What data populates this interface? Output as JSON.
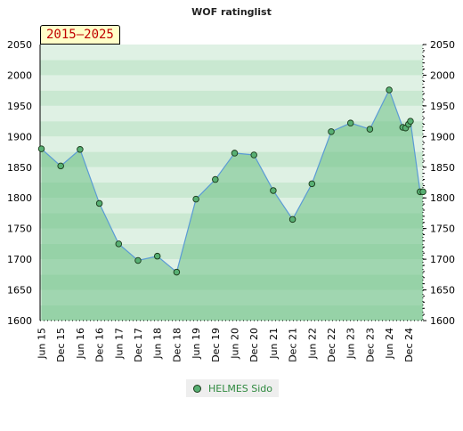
{
  "chart_data": {
    "type": "line",
    "title": "WOF ratinglist",
    "range_label": "2015–2025",
    "xlabel": "",
    "ylabel": "",
    "ylim": [
      1600,
      2050
    ],
    "y_ticks": [
      1600,
      1650,
      1700,
      1750,
      1800,
      1850,
      1900,
      1950,
      2000,
      2050
    ],
    "categories": [
      "Jun 15",
      "Dec 15",
      "Jun 16",
      "Dec 16",
      "Jun 17",
      "Dec 17",
      "Jun 18",
      "Dec 18",
      "Jun 19",
      "Dec 19",
      "Jun 20",
      "Dec 20",
      "Jun 21",
      "Dec 21",
      "Jun 22",
      "Dec 22",
      "Jun 23",
      "Dec 23",
      "Jun 24",
      "Dec 24"
    ],
    "series": [
      {
        "name": "HELMES Sido",
        "color": "#58b073",
        "line_color": "#5b9bd5",
        "x": [
          0,
          1,
          2,
          3,
          4,
          5,
          6,
          7,
          8,
          9,
          10,
          11,
          12,
          13,
          14,
          15,
          16,
          17,
          18,
          18.7,
          18.85,
          19.0,
          19.1,
          19.6,
          19.75
        ],
        "values": [
          1880,
          1852,
          1879,
          1791,
          1725,
          1698,
          1705,
          1679,
          1798,
          1830,
          1873,
          1870,
          1812,
          1765,
          1823,
          1908,
          1922,
          1912,
          1976,
          1915,
          1914,
          1920,
          1925,
          1810,
          1810
        ]
      }
    ],
    "grid": true,
    "legend_position": "bottom"
  }
}
